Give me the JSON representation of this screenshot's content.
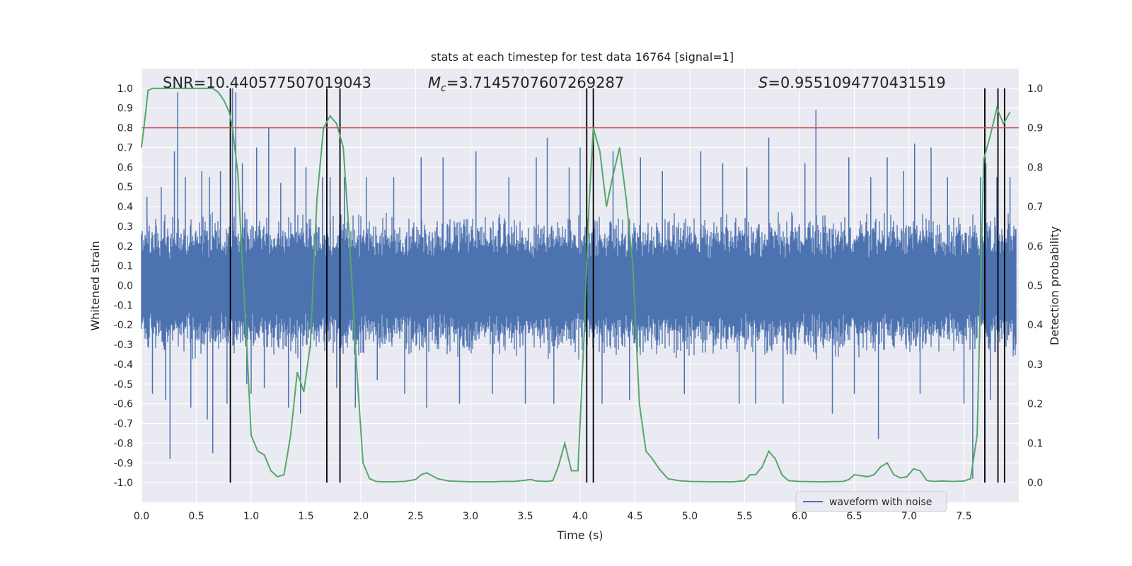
{
  "chart_data": {
    "type": "line",
    "title": "stats at each timestep for test data 16764 [signal=1]",
    "xlabel": "Time (s)",
    "ylabel_left": "Whitened strain",
    "ylabel_right": "Detection probability",
    "xlim": [
      0.0,
      8.0
    ],
    "ylim_left": [
      -1.1,
      1.1
    ],
    "ylim_right": [
      -0.05,
      1.05
    ],
    "xticks": [
      "0.0",
      "0.5",
      "1.0",
      "1.5",
      "2.0",
      "2.5",
      "3.0",
      "3.5",
      "4.0",
      "4.5",
      "5.0",
      "5.5",
      "6.0",
      "6.5",
      "7.0",
      "7.5"
    ],
    "yticks_left": [
      "-1.0",
      "-0.9",
      "-0.8",
      "-0.7",
      "-0.6",
      "-0.5",
      "-0.4",
      "-0.3",
      "-0.2",
      "-0.1",
      "0.0",
      "0.1",
      "0.2",
      "0.3",
      "0.4",
      "0.5",
      "0.6",
      "0.7",
      "0.8",
      "0.9",
      "1.0"
    ],
    "yticks_right": [
      "0.0",
      "0.1",
      "0.2",
      "0.3",
      "0.4",
      "0.5",
      "0.6",
      "0.7",
      "0.8",
      "0.9",
      "1.0"
    ],
    "grid": true,
    "annotations": {
      "snr": "SNR=10.440577507019043",
      "mc_symbol": "M",
      "mc_sub": "c",
      "mc_value": "=3.7145707607269287",
      "s_symbol": "S",
      "s_value": "=0.9551094770431519"
    },
    "threshold": {
      "axis": "right",
      "value": 0.9,
      "color": "#c44e52"
    },
    "vertical_lines": [
      0.81,
      1.69,
      1.81,
      4.06,
      4.12,
      7.69,
      7.81,
      7.87
    ],
    "vertical_line_range_right": [
      0.0,
      1.0
    ],
    "legend": {
      "placement": "lower-right",
      "entries": [
        "waveform with noise"
      ]
    },
    "series": [
      {
        "name": "waveform with noise",
        "color": "#4c72b0",
        "axis": "left",
        "style": "dense-noise",
        "envelope": 0.38,
        "spikes": [
          [
            0.05,
            0.45
          ],
          [
            0.1,
            -0.55
          ],
          [
            0.18,
            0.5
          ],
          [
            0.22,
            -0.58
          ],
          [
            0.26,
            -0.88
          ],
          [
            0.3,
            0.68
          ],
          [
            0.33,
            0.98
          ],
          [
            0.4,
            0.55
          ],
          [
            0.45,
            -0.62
          ],
          [
            0.55,
            0.58
          ],
          [
            0.6,
            -0.68
          ],
          [
            0.62,
            0.55
          ],
          [
            0.65,
            -0.85
          ],
          [
            0.72,
            0.58
          ],
          [
            0.78,
            -0.6
          ],
          [
            0.83,
            1.0
          ],
          [
            0.86,
            0.98
          ],
          [
            0.92,
            0.62
          ],
          [
            0.96,
            -0.5
          ],
          [
            1.0,
            -0.55
          ],
          [
            1.05,
            0.7
          ],
          [
            1.12,
            -0.52
          ],
          [
            1.16,
            0.8
          ],
          [
            1.27,
            0.52
          ],
          [
            1.34,
            -0.62
          ],
          [
            1.4,
            0.7
          ],
          [
            1.45,
            -0.65
          ],
          [
            1.5,
            0.6
          ],
          [
            1.65,
            0.55
          ],
          [
            1.72,
            0.55
          ],
          [
            1.78,
            -0.52
          ],
          [
            1.85,
            0.55
          ],
          [
            1.95,
            -0.62
          ],
          [
            2.05,
            0.55
          ],
          [
            2.15,
            -0.48
          ],
          [
            2.3,
            0.55
          ],
          [
            2.4,
            -0.55
          ],
          [
            2.55,
            0.65
          ],
          [
            2.6,
            -0.62
          ],
          [
            2.75,
            0.65
          ],
          [
            2.9,
            -0.6
          ],
          [
            3.05,
            0.68
          ],
          [
            3.2,
            -0.55
          ],
          [
            3.35,
            0.55
          ],
          [
            3.5,
            -0.6
          ],
          [
            3.6,
            0.65
          ],
          [
            3.7,
            0.75
          ],
          [
            3.76,
            -0.6
          ],
          [
            3.9,
            0.6
          ],
          [
            4.0,
            0.7
          ],
          [
            4.2,
            -0.6
          ],
          [
            4.3,
            0.68
          ],
          [
            4.45,
            -0.58
          ],
          [
            4.55,
            0.65
          ],
          [
            4.75,
            0.58
          ],
          [
            4.95,
            -0.55
          ],
          [
            5.1,
            0.68
          ],
          [
            5.3,
            0.62
          ],
          [
            5.45,
            -0.6
          ],
          [
            5.52,
            0.6
          ],
          [
            5.6,
            -0.6
          ],
          [
            5.72,
            0.75
          ],
          [
            5.85,
            -0.6
          ],
          [
            6.05,
            0.62
          ],
          [
            6.15,
            0.89
          ],
          [
            6.3,
            -0.65
          ],
          [
            6.45,
            0.65
          ],
          [
            6.5,
            -0.55
          ],
          [
            6.65,
            0.55
          ],
          [
            6.72,
            -0.78
          ],
          [
            6.8,
            0.65
          ],
          [
            6.95,
            0.58
          ],
          [
            7.05,
            0.72
          ],
          [
            7.1,
            -0.55
          ],
          [
            7.2,
            0.7
          ],
          [
            7.35,
            0.55
          ],
          [
            7.5,
            -0.6
          ],
          [
            7.58,
            -0.98
          ],
          [
            7.65,
            0.55
          ],
          [
            7.7,
            0.62
          ],
          [
            7.74,
            -0.58
          ],
          [
            7.8,
            0.55
          ],
          [
            7.87,
            0.9
          ],
          [
            7.92,
            0.55
          ]
        ]
      },
      {
        "name": "",
        "color": "#55a868",
        "axis": "right",
        "x": [
          0.0,
          0.03,
          0.06,
          0.1,
          0.2,
          0.3,
          0.4,
          0.5,
          0.6,
          0.65,
          0.7,
          0.75,
          0.8,
          0.83,
          0.88,
          0.92,
          0.96,
          1.0,
          1.06,
          1.12,
          1.18,
          1.24,
          1.3,
          1.36,
          1.42,
          1.48,
          1.54,
          1.6,
          1.66,
          1.72,
          1.78,
          1.84,
          1.9,
          1.96,
          2.02,
          2.08,
          2.14,
          2.2,
          2.3,
          2.4,
          2.5,
          2.55,
          2.6,
          2.7,
          2.8,
          3.0,
          3.2,
          3.3,
          3.4,
          3.5,
          3.55,
          3.6,
          3.7,
          3.75,
          3.8,
          3.86,
          3.92,
          3.98,
          4.04,
          4.08,
          4.12,
          4.18,
          4.24,
          4.3,
          4.36,
          4.42,
          4.48,
          4.54,
          4.6,
          4.66,
          4.72,
          4.8,
          4.9,
          5.0,
          5.2,
          5.4,
          5.5,
          5.55,
          5.6,
          5.66,
          5.72,
          5.78,
          5.84,
          5.9,
          6.0,
          6.2,
          6.4,
          6.45,
          6.5,
          6.55,
          6.62,
          6.68,
          6.74,
          6.8,
          6.86,
          6.92,
          6.98,
          7.04,
          7.1,
          7.16,
          7.22,
          7.3,
          7.4,
          7.5,
          7.56,
          7.62,
          7.68,
          7.74,
          7.8,
          7.86,
          7.92
        ],
        "values": [
          0.85,
          0.92,
          0.995,
          1.0,
          1.0,
          1.0,
          1.0,
          1.0,
          1.0,
          1.0,
          0.99,
          0.97,
          0.94,
          0.9,
          0.78,
          0.55,
          0.35,
          0.12,
          0.08,
          0.07,
          0.03,
          0.015,
          0.02,
          0.12,
          0.28,
          0.23,
          0.35,
          0.72,
          0.9,
          0.93,
          0.91,
          0.85,
          0.6,
          0.3,
          0.05,
          0.01,
          0.003,
          0.002,
          0.002,
          0.003,
          0.008,
          0.02,
          0.025,
          0.01,
          0.004,
          0.002,
          0.002,
          0.003,
          0.003,
          0.006,
          0.008,
          0.004,
          0.003,
          0.005,
          0.04,
          0.1,
          0.03,
          0.03,
          0.4,
          0.7,
          0.9,
          0.84,
          0.7,
          0.78,
          0.85,
          0.72,
          0.55,
          0.2,
          0.08,
          0.06,
          0.035,
          0.01,
          0.005,
          0.003,
          0.002,
          0.002,
          0.005,
          0.02,
          0.02,
          0.04,
          0.08,
          0.06,
          0.02,
          0.005,
          0.003,
          0.002,
          0.003,
          0.008,
          0.02,
          0.018,
          0.015,
          0.02,
          0.04,
          0.05,
          0.02,
          0.012,
          0.015,
          0.035,
          0.03,
          0.006,
          0.003,
          0.004,
          0.003,
          0.004,
          0.01,
          0.12,
          0.82,
          0.88,
          0.95,
          0.91,
          0.94
        ]
      }
    ]
  }
}
